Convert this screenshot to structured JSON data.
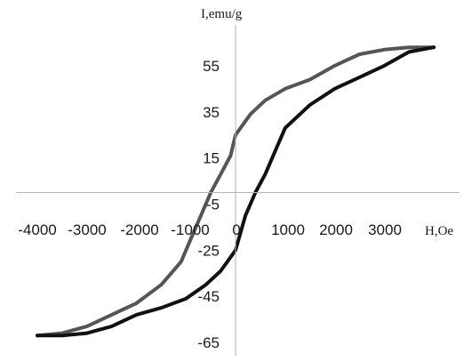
{
  "chart_data": {
    "type": "line",
    "title": "",
    "xlabel": "H,Oe",
    "ylabel": "I,emu/g",
    "xlim": [
      -4000,
      4000
    ],
    "ylim": [
      -65,
      65
    ],
    "grid": false,
    "x_ticks": [
      -4000,
      -3000,
      -2000,
      -1000,
      0,
      1000,
      2000,
      3000
    ],
    "x_tick_labels": [
      "-4000",
      "-3000",
      "-2000",
      "-1000",
      "0",
      "1000",
      "2000",
      "3000"
    ],
    "y_ticks": [
      55,
      35,
      15,
      -5,
      -25,
      -45,
      -65
    ],
    "y_tick_labels": [
      "55",
      "35",
      "15",
      "-5",
      "-25",
      "-45",
      "-65"
    ],
    "series": [
      {
        "color": "#555555",
        "points": [
          [
            -4000,
            -62
          ],
          [
            -3500,
            -61
          ],
          [
            -3000,
            -58
          ],
          [
            -2500,
            -53
          ],
          [
            -2000,
            -48
          ],
          [
            -1500,
            -40
          ],
          [
            -1100,
            -30
          ],
          [
            -900,
            -20
          ],
          [
            -700,
            -10
          ],
          [
            -500,
            0
          ],
          [
            -300,
            8
          ],
          [
            -100,
            16
          ],
          [
            0,
            25
          ],
          [
            300,
            34
          ],
          [
            600,
            40
          ],
          [
            1000,
            45
          ],
          [
            1500,
            49
          ],
          [
            2000,
            55
          ],
          [
            2500,
            60
          ],
          [
            3000,
            62
          ],
          [
            3500,
            63
          ],
          [
            4000,
            63
          ]
        ]
      },
      {
        "color": "#111111",
        "points": [
          [
            -4000,
            -62
          ],
          [
            -3500,
            -62
          ],
          [
            -3000,
            -61
          ],
          [
            -2500,
            -58
          ],
          [
            -2000,
            -53
          ],
          [
            -1500,
            -50
          ],
          [
            -1000,
            -46
          ],
          [
            -600,
            -40
          ],
          [
            -300,
            -34
          ],
          [
            0,
            -25
          ],
          [
            200,
            -10
          ],
          [
            400,
            0
          ],
          [
            600,
            8
          ],
          [
            800,
            18
          ],
          [
            1000,
            28
          ],
          [
            1500,
            38
          ],
          [
            2000,
            45
          ],
          [
            2500,
            50
          ],
          [
            3000,
            55
          ],
          [
            3500,
            61
          ],
          [
            4000,
            63
          ]
        ]
      }
    ]
  }
}
